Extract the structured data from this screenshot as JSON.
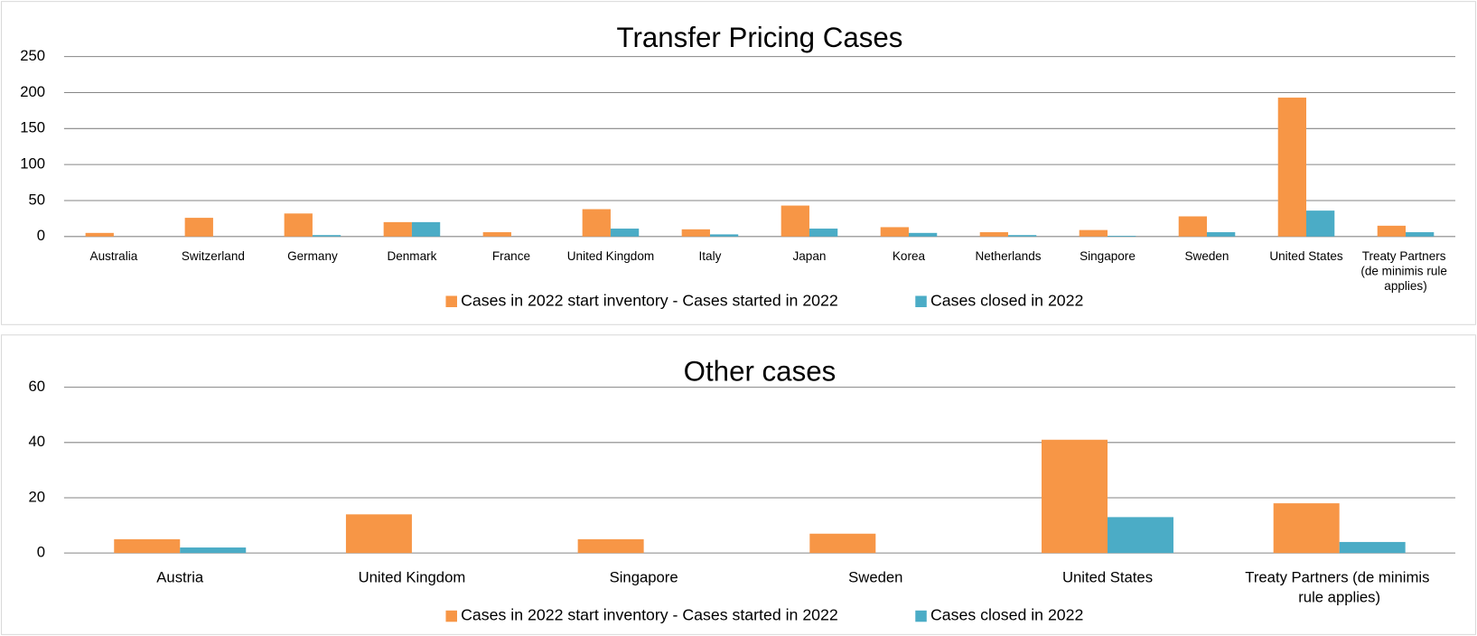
{
  "chart_data": [
    {
      "type": "bar",
      "title": "Transfer Pricing Cases",
      "categories": [
        "Australia",
        "Switzerland",
        "Germany",
        "Denmark",
        "France",
        "United Kingdom",
        "Italy",
        "Japan",
        "Korea",
        "Netherlands",
        "Singapore",
        "Sweden",
        "United States",
        "Treaty Partners (de minimis rule applies)"
      ],
      "series": [
        {
          "name": "Cases in 2022 start inventory - Cases started in 2022",
          "color": "#f79646",
          "values": [
            5,
            26,
            32,
            20,
            6,
            38,
            10,
            43,
            13,
            6,
            9,
            28,
            193,
            15
          ]
        },
        {
          "name": "Cases closed in 2022",
          "color": "#4bacc6",
          "values": [
            0,
            0,
            2,
            20,
            0,
            11,
            3,
            11,
            5,
            2,
            1,
            6,
            36,
            6
          ]
        }
      ],
      "ylim": [
        0,
        250
      ],
      "yticks": [
        0,
        50,
        100,
        150,
        200,
        250
      ],
      "grid": true,
      "legend": "bottom"
    },
    {
      "type": "bar",
      "title": "Other cases",
      "categories": [
        "Austria",
        "United Kingdom",
        "Singapore",
        "Sweden",
        "United States",
        "Treaty Partners (de minimis rule applies)"
      ],
      "series": [
        {
          "name": "Cases in 2022 start inventory - Cases started in 2022",
          "color": "#f79646",
          "values": [
            5,
            14,
            5,
            7,
            41,
            18
          ]
        },
        {
          "name": "Cases closed in 2022",
          "color": "#4bacc6",
          "values": [
            2,
            0,
            0,
            0,
            13,
            4
          ]
        }
      ],
      "ylim": [
        0,
        60
      ],
      "yticks": [
        0,
        20,
        40,
        60
      ],
      "grid": true,
      "legend": "bottom"
    }
  ]
}
